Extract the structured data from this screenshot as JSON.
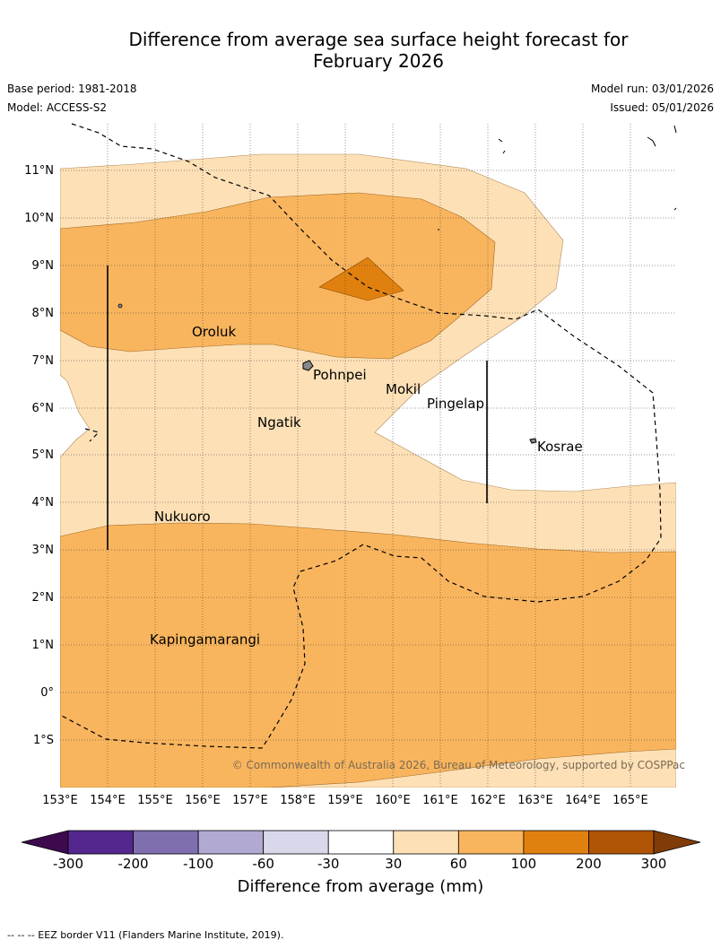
{
  "title_line1": "Difference from average sea surface height forecast for",
  "title_line2": "February 2026",
  "base_period": "Base period: 1981-2018",
  "model": "Model: ACCESS-S2",
  "model_run": "Model run: 03/01/2026",
  "issued": "Issued: 05/01/2026",
  "lat_labels": [
    "11°N",
    "10°N",
    "9°N",
    "8°N",
    "7°N",
    "6°N",
    "5°N",
    "4°N",
    "3°N",
    "2°N",
    "1°N",
    "0°",
    "1°S"
  ],
  "lon_labels": [
    "153°E",
    "154°E",
    "155°E",
    "156°E",
    "157°E",
    "158°E",
    "159°E",
    "160°E",
    "161°E",
    "162°E",
    "163°E",
    "164°E",
    "165°E"
  ],
  "places": {
    "oroluk": "Oroluk",
    "pohnpei": "Pohnpei",
    "mokil": "Mokil",
    "pingelap": "Pingelap",
    "ngatik": "Ngatik",
    "kosrae": "Kosrae",
    "nukuoro": "Nukuoro",
    "kapingamarangi": "Kapingamarangi"
  },
  "copyright": "© Commonwealth of Australia 2026, Bureau of Meteorology, supported by COSPPac",
  "colorbar": {
    "ticks": [
      "-300",
      "-200",
      "-100",
      "-60",
      "-30",
      "30",
      "60",
      "100",
      "200",
      "300"
    ],
    "colors": [
      "#54278f",
      "#7f6faf",
      "#b1a9d2",
      "#d9d8eb",
      "#ffffff",
      "#fde0b6",
      "#f9b55e",
      "#e0810f",
      "#b05405"
    ],
    "under_color": "#3c0a4d",
    "over_color": "#7f3b08",
    "label": "Difference from average (mm)"
  },
  "legend_note": "--  --  -- EEZ border V11 (Flanders Marine Institute, 2019)."
}
